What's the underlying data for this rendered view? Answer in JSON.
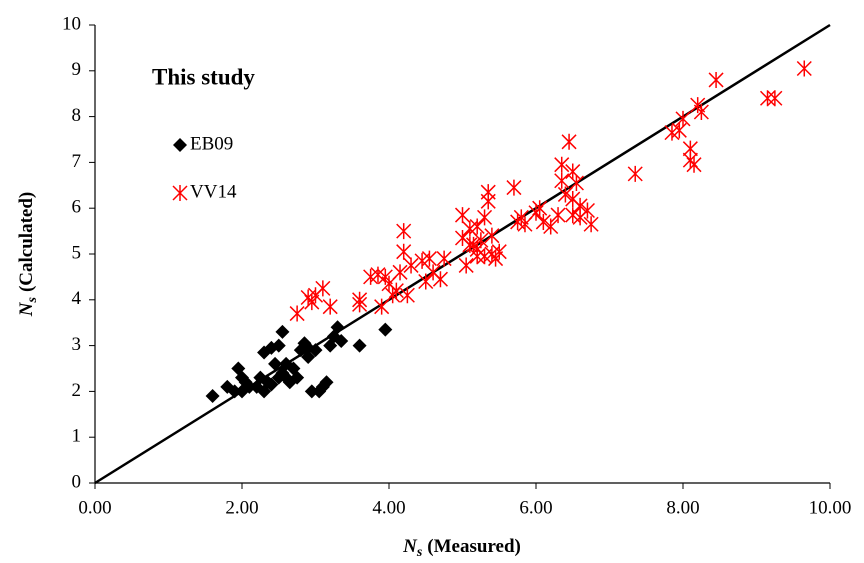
{
  "chart_data": {
    "type": "scatter",
    "annotation": "This study",
    "x_label": {
      "symbol": "N",
      "subscript": "s",
      "text": "(Measured)"
    },
    "y_label": {
      "symbol": "N",
      "subscript": "s",
      "text": "(Calculated)"
    },
    "xlim": [
      0,
      10
    ],
    "ylim": [
      0,
      10
    ],
    "xticks": [
      {
        "value": 0,
        "label": "0.00"
      },
      {
        "value": 2,
        "label": "2.00"
      },
      {
        "value": 4,
        "label": "4.00"
      },
      {
        "value": 6,
        "label": "6.00"
      },
      {
        "value": 8,
        "label": "8.00"
      },
      {
        "value": 10,
        "label": "10.00"
      }
    ],
    "yticks": [
      0,
      1,
      2,
      3,
      4,
      5,
      6,
      7,
      8,
      9,
      10
    ],
    "series": [
      {
        "name": "EB09",
        "color": "#000000",
        "marker": "diamond",
        "x": [
          1.6,
          1.8,
          1.9,
          1.95,
          2.0,
          2.0,
          2.05,
          2.1,
          2.2,
          2.25,
          2.3,
          2.3,
          2.4,
          2.4,
          2.45,
          2.5,
          2.5,
          2.55,
          2.55,
          2.6,
          2.65,
          2.7,
          2.75,
          2.8,
          2.85,
          2.9,
          2.95,
          3.0,
          3.05,
          3.1,
          3.15,
          3.2,
          3.25,
          3.3,
          3.35,
          3.6,
          3.95,
          2.9,
          2.35,
          2.6
        ],
        "values": [
          1.9,
          2.1,
          2.0,
          2.5,
          2.3,
          2.0,
          2.2,
          2.1,
          2.1,
          2.3,
          2.0,
          2.85,
          2.95,
          2.15,
          2.6,
          3.0,
          2.3,
          2.4,
          3.3,
          2.6,
          2.2,
          2.5,
          2.3,
          2.9,
          3.05,
          2.75,
          2.0,
          2.9,
          2.0,
          2.1,
          2.2,
          3.0,
          3.2,
          3.4,
          3.1,
          3.0,
          3.35,
          2.95,
          2.2,
          2.3
        ]
      },
      {
        "name": "VV14",
        "color": "#ff0000",
        "marker": "asterisk",
        "x": [
          2.75,
          2.9,
          2.95,
          3.0,
          3.1,
          3.2,
          3.6,
          3.6,
          3.75,
          3.85,
          3.9,
          3.95,
          4.0,
          4.05,
          4.1,
          4.15,
          4.2,
          4.2,
          4.25,
          4.3,
          4.45,
          4.5,
          4.55,
          4.6,
          4.7,
          4.75,
          5.0,
          5.0,
          5.05,
          5.1,
          5.1,
          5.15,
          5.2,
          5.2,
          5.2,
          5.25,
          5.3,
          5.3,
          5.35,
          5.35,
          5.4,
          5.4,
          5.45,
          5.5,
          5.7,
          5.75,
          5.8,
          5.85,
          6.0,
          6.05,
          6.1,
          6.2,
          6.3,
          6.35,
          6.35,
          6.4,
          6.45,
          6.5,
          6.5,
          6.5,
          6.55,
          6.6,
          6.6,
          6.7,
          6.75,
          7.35,
          7.85,
          7.95,
          8.0,
          8.1,
          8.1,
          8.15,
          8.2,
          8.25,
          8.45,
          9.15,
          9.25,
          9.65
        ],
        "values": [
          3.7,
          4.05,
          3.95,
          4.1,
          4.25,
          3.85,
          4.0,
          3.9,
          4.5,
          4.55,
          3.85,
          4.5,
          4.35,
          4.1,
          4.2,
          4.6,
          5.5,
          5.05,
          4.1,
          4.75,
          4.85,
          4.4,
          4.9,
          4.6,
          4.45,
          4.9,
          5.35,
          5.85,
          4.75,
          5.2,
          5.55,
          5.2,
          4.95,
          5.6,
          5.1,
          5.3,
          4.95,
          5.8,
          6.15,
          6.35,
          5.0,
          5.4,
          4.9,
          5.05,
          6.45,
          5.7,
          5.8,
          5.65,
          5.9,
          6.0,
          5.7,
          5.6,
          5.85,
          6.95,
          6.6,
          6.3,
          7.45,
          6.8,
          6.2,
          5.85,
          6.55,
          5.8,
          6.05,
          5.95,
          5.65,
          6.75,
          7.65,
          7.7,
          7.95,
          7.3,
          7.05,
          6.95,
          8.25,
          8.1,
          8.8,
          8.4,
          8.4,
          9.05
        ]
      }
    ]
  }
}
